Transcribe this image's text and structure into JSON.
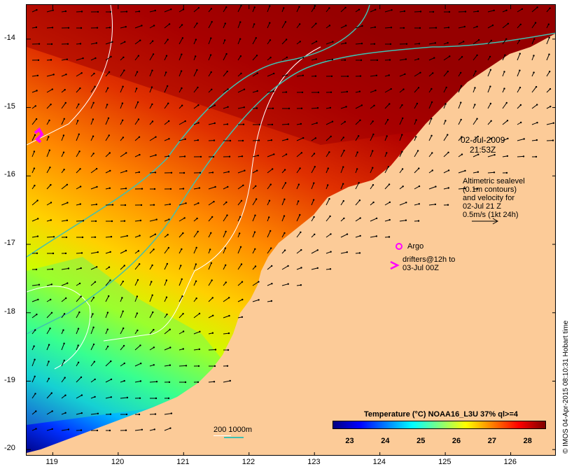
{
  "map": {
    "lon_ticks": [
      "119",
      "120",
      "121",
      "122",
      "123",
      "124",
      "125",
      "126"
    ],
    "lat_ticks": [
      "-14",
      "-15",
      "-16",
      "-17",
      "-18",
      "-19",
      "-20"
    ],
    "lon_range": [
      118.6,
      126.7
    ],
    "lat_range": [
      -13.5,
      -20.1
    ],
    "land_color": "#fccb98",
    "white_contour_color": "#ffffff",
    "isobath_color": "#40c0b0"
  },
  "annotations": {
    "date": "02-Jul-2009",
    "time": "21:53Z",
    "altimetry": [
      "Altimetric sealevel",
      "(0.1m contours)",
      "and velocity for",
      "02-Jul 21 Z",
      "0.5m/s (1kt 24h)"
    ],
    "argo_label": "Argo",
    "drifters": [
      "drifters@12h to",
      "03-Jul 00Z"
    ],
    "depth_contours": "200  1000m"
  },
  "legend": {
    "title": "Temperature (°C) NOAA16_L3U 37% ql>=4",
    "ticks": [
      "23",
      "24",
      "25",
      "26",
      "27",
      "28"
    ],
    "range": [
      22.5,
      28.5
    ],
    "colors": [
      "#00007f",
      "#0000ff",
      "#007fff",
      "#00ffff",
      "#7fff7f",
      "#ffff00",
      "#ff7f00",
      "#ff0000",
      "#7f0000"
    ]
  },
  "credit": "© IMOS 04-Apr-2015 08:10:31 Hobart time"
}
